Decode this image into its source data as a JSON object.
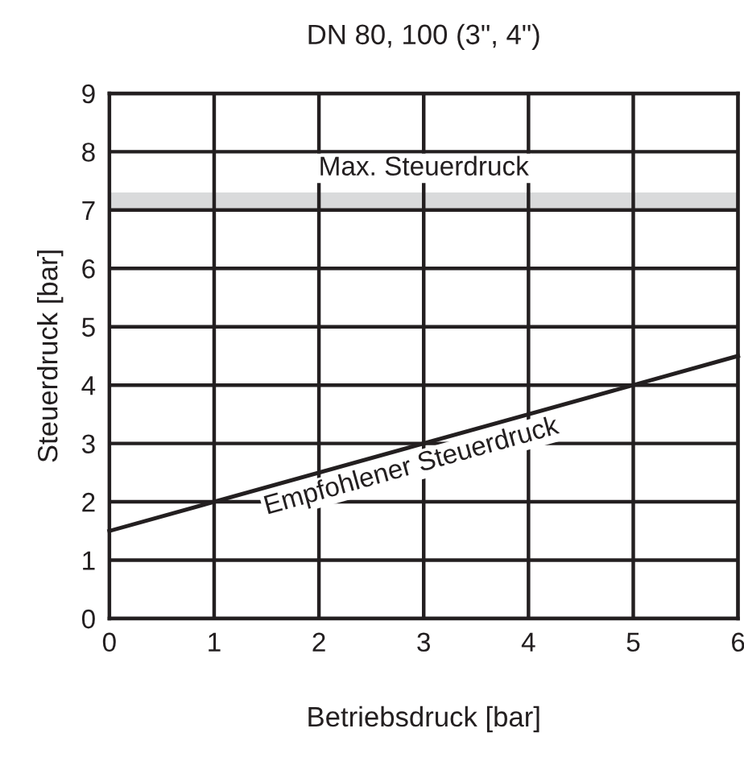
{
  "chart_data": {
    "type": "line",
    "title": "DN 80, 100 (3\", 4\")",
    "xlabel": "Betriebsdruck [bar]",
    "ylabel": "Steuerdruck [bar]",
    "x": [
      0,
      6
    ],
    "series": [
      {
        "name": "Empfohlener Steuerdruck",
        "color": "#231f20",
        "values": [
          1.5,
          4.5
        ]
      }
    ],
    "bands": [
      {
        "axis": "y",
        "from": 7.0,
        "to": 7.3,
        "label": "Max. Steuerdruck",
        "color": "#d9dadb"
      }
    ],
    "xlim": [
      0,
      6
    ],
    "ylim": [
      0,
      9
    ],
    "xticks": [
      0,
      1,
      2,
      3,
      4,
      5,
      6
    ],
    "yticks": [
      0,
      1,
      2,
      3,
      4,
      5,
      6,
      7,
      8,
      9
    ],
    "grid": true,
    "legend": false
  }
}
